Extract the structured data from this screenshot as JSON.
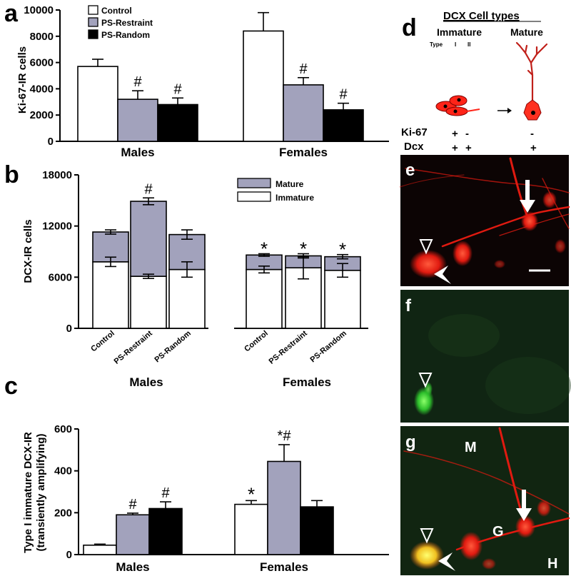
{
  "chart_data": [
    {
      "panel": "a",
      "type": "bar",
      "ylabel": "Ki-67-IR cells",
      "ylim": [
        0,
        10000
      ],
      "yticks": [
        "0",
        "2000",
        "4000",
        "6000",
        "8000",
        "10000"
      ],
      "groups": [
        "Males",
        "Females"
      ],
      "series": [
        {
          "name": "Control",
          "color": "#ffffff",
          "values": [
            5700,
            8400
          ],
          "errors": [
            550,
            1400
          ]
        },
        {
          "name": "PS-Restraint",
          "color": "#a2a2bc",
          "values": [
            3200,
            4300
          ],
          "errors": [
            650,
            550
          ]
        },
        {
          "name": "PS-Random",
          "color": "#000000",
          "values": [
            2800,
            2400
          ],
          "errors": [
            500,
            500
          ]
        }
      ],
      "annotations": [
        {
          "group": 0,
          "series": 1,
          "text": "#"
        },
        {
          "group": 0,
          "series": 2,
          "text": "#"
        },
        {
          "group": 1,
          "series": 1,
          "text": "#"
        },
        {
          "group": 1,
          "series": 2,
          "text": "#"
        }
      ]
    },
    {
      "panel": "b",
      "type": "stacked-bar",
      "ylabel": "DCX-IR cells",
      "ylim": [
        0,
        18000
      ],
      "yticks": [
        "0",
        "6000",
        "12000",
        "18000"
      ],
      "groups": [
        "Males",
        "Females"
      ],
      "categories": [
        "Control",
        "PS-Restraint",
        "PS-Random",
        "Control",
        "PS-Restraint",
        "PS-Random"
      ],
      "legend": [
        {
          "name": "Mature",
          "color": "#a2a2bc"
        },
        {
          "name": "Immature",
          "color": "#ffffff"
        }
      ],
      "series": [
        {
          "name": "Immature",
          "values": [
            7800,
            6100,
            6900,
            6900,
            7100,
            6800
          ],
          "errors": [
            550,
            250,
            900,
            400,
            1300,
            800
          ]
        },
        {
          "name": "Mature",
          "values": [
            3500,
            8800,
            4100,
            1700,
            1400,
            1600
          ],
          "errors": [
            250,
            400,
            550,
            150,
            250,
            250
          ]
        }
      ],
      "annotations": [
        {
          "bar": 1,
          "text": "#"
        },
        {
          "bar": 3,
          "text": "*"
        },
        {
          "bar": 4,
          "text": "*"
        },
        {
          "bar": 5,
          "text": "*"
        }
      ]
    },
    {
      "panel": "c",
      "type": "bar",
      "ylabel_line1": "Type I immature DCX-IR",
      "ylabel_line2": "(transiently amplifying)",
      "ylim": [
        0,
        600
      ],
      "yticks": [
        "0",
        "200",
        "400",
        "600"
      ],
      "groups": [
        "Males",
        "Females"
      ],
      "series": [
        {
          "name": "Control",
          "color": "#ffffff",
          "values": [
            45,
            240
          ],
          "errors": [
            5,
            18
          ]
        },
        {
          "name": "PS-Restraint",
          "color": "#a2a2bc",
          "values": [
            190,
            445
          ],
          "errors": [
            8,
            80
          ]
        },
        {
          "name": "PS-Random",
          "color": "#000000",
          "values": [
            220,
            228
          ],
          "errors": [
            32,
            30
          ]
        }
      ],
      "annotations": [
        {
          "group": 0,
          "series": 1,
          "text": "#"
        },
        {
          "group": 0,
          "series": 2,
          "text": "#"
        },
        {
          "group": 1,
          "series": 0,
          "text": "*"
        },
        {
          "group": 1,
          "series": 1,
          "text": "*#"
        }
      ]
    }
  ],
  "panel_labels": {
    "a": "a",
    "b": "b",
    "c": "c",
    "d": "d",
    "e": "e",
    "f": "f",
    "g": "g"
  },
  "diagram": {
    "title": "DCX Cell types",
    "immature": "Immature",
    "mature": "Mature",
    "type_label": "Type",
    "type_i": "I",
    "type_ii": "II",
    "ki67": "Ki-67",
    "dcx": "Dcx",
    "ki67_marks": [
      "+",
      "-",
      "-"
    ],
    "dcx_marks": [
      "+",
      "+",
      "+"
    ]
  },
  "micrograph_g": {
    "zone_m": "M",
    "zone_g": "G",
    "zone_h": "H"
  },
  "colors": {
    "restraint": "#a2a2bc",
    "random": "#000000",
    "control": "#ffffff",
    "dcx_red": "#ff2418",
    "ki67_green": "#39d23c"
  }
}
